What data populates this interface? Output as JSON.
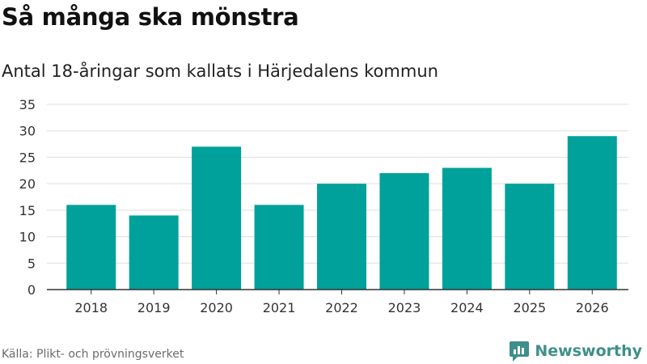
{
  "header": {
    "title": "Så många ska mönstra",
    "subtitle": "Antal 18-åringar som kallats i Härjedalens kommun"
  },
  "footer": {
    "source": "Källa: Plikt- och prövningsverket",
    "brand": "Newsworthy",
    "brand_icon": "newsworthy-logo-icon"
  },
  "colors": {
    "bar": "#00a19a",
    "grid": "#dddddd",
    "axis": "#333333",
    "brand": "#3f8f8a"
  },
  "chart_data": {
    "type": "bar",
    "categories": [
      "2018",
      "2019",
      "2020",
      "2021",
      "2022",
      "2023",
      "2024",
      "2025",
      "2026"
    ],
    "values": [
      16,
      14,
      27,
      16,
      20,
      22,
      23,
      20,
      29
    ],
    "yticks": [
      0,
      5,
      10,
      15,
      20,
      25,
      30,
      35
    ],
    "ylim": [
      0,
      35
    ],
    "grid": true,
    "legend": "none"
  }
}
